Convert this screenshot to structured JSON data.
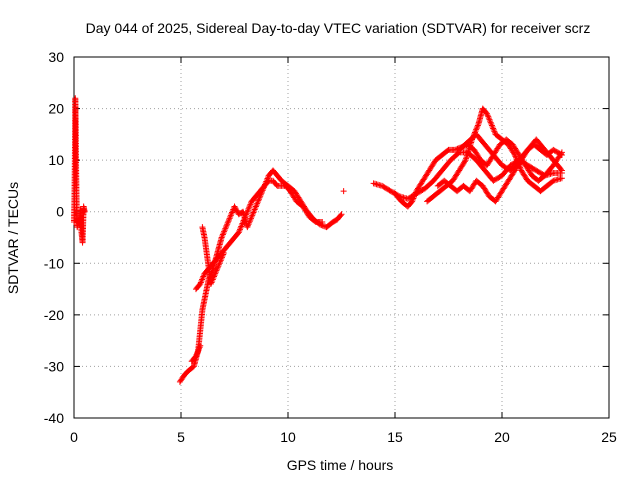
{
  "chart_data": {
    "type": "scatter",
    "title": "Day 044 of 2025, Sidereal Day-to-day VTEC variation (SDTVAR) for receiver scrz",
    "xlabel": "GPS time / hours",
    "ylabel": "SDTVAR / TECUs",
    "xlim": [
      0,
      25
    ],
    "ylim": [
      -40,
      30
    ],
    "xticks": [
      "0",
      "5",
      "10",
      "15",
      "20",
      "25"
    ],
    "yticks": [
      "-40",
      "-30",
      "-20",
      "-10",
      "0",
      "10",
      "20",
      "30"
    ],
    "grid": true,
    "marker": "+",
    "color": "#ff0000",
    "series": [
      {
        "name": "SDTVAR",
        "segments": [
          [
            [
              0.0,
              -2
            ],
            [
              0.02,
              2
            ],
            [
              0.03,
              6
            ],
            [
              0.04,
              10
            ],
            [
              0.05,
              14
            ],
            [
              0.06,
              18
            ],
            [
              0.06,
              22
            ],
            [
              0.08,
              16
            ],
            [
              0.1,
              8
            ],
            [
              0.12,
              2
            ],
            [
              0.15,
              -3
            ],
            [
              0.2,
              -1.5
            ],
            [
              0.25,
              -2.5
            ],
            [
              0.3,
              0.5
            ],
            [
              0.35,
              -4
            ],
            [
              0.4,
              -6
            ],
            [
              0.45,
              1
            ],
            [
              0.5,
              0
            ]
          ],
          [
            [
              4.95,
              -33
            ],
            [
              5.1,
              -32
            ],
            [
              5.3,
              -31
            ],
            [
              5.6,
              -30
            ],
            [
              5.8,
              -27
            ],
            [
              5.9,
              -23
            ],
            [
              6.0,
              -19
            ],
            [
              6.1,
              -17
            ],
            [
              6.2,
              -15
            ],
            [
              6.3,
              -13
            ],
            [
              6.5,
              -11
            ],
            [
              6.7,
              -8
            ],
            [
              6.9,
              -5
            ],
            [
              7.1,
              -3
            ],
            [
              7.3,
              -1
            ],
            [
              7.5,
              1
            ],
            [
              7.7,
              -0.5
            ],
            [
              7.9,
              0
            ],
            [
              8.1,
              -3
            ],
            [
              8.3,
              -1
            ],
            [
              8.5,
              1
            ],
            [
              8.7,
              3
            ],
            [
              8.9,
              5
            ],
            [
              9.1,
              7
            ],
            [
              9.3,
              8
            ],
            [
              9.5,
              7
            ],
            [
              9.7,
              6
            ],
            [
              10.0,
              5
            ],
            [
              10.3,
              4
            ],
            [
              10.6,
              2
            ],
            [
              10.9,
              0
            ],
            [
              11.2,
              -1.5
            ],
            [
              11.5,
              -2.5
            ],
            [
              11.8,
              -3
            ],
            [
              12.1,
              -2
            ],
            [
              12.3,
              -1.5
            ],
            [
              12.5,
              -0.5
            ]
          ],
          [
            [
              5.7,
              -15
            ],
            [
              5.9,
              -14
            ],
            [
              6.1,
              -12
            ],
            [
              6.3,
              -11
            ],
            [
              6.5,
              -10
            ],
            [
              6.7,
              -9
            ],
            [
              6.9,
              -8
            ],
            [
              7.1,
              -7
            ],
            [
              7.3,
              -6
            ],
            [
              7.5,
              -5
            ],
            [
              7.7,
              -4
            ],
            [
              7.9,
              -2
            ],
            [
              8.1,
              0
            ],
            [
              8.3,
              2
            ],
            [
              8.5,
              3
            ],
            [
              8.7,
              4
            ],
            [
              8.9,
              5
            ],
            [
              9.1,
              6
            ],
            [
              9.3,
              6
            ],
            [
              9.5,
              5
            ],
            [
              9.7,
              5
            ],
            [
              9.9,
              5
            ],
            [
              10.1,
              4
            ],
            [
              10.4,
              2
            ],
            [
              10.7,
              1
            ],
            [
              11.0,
              -1
            ],
            [
              11.3,
              -2
            ],
            [
              11.6,
              -2
            ]
          ],
          [
            [
              6.0,
              -3
            ],
            [
              6.1,
              -5
            ],
            [
              6.2,
              -8
            ],
            [
              6.3,
              -11
            ],
            [
              6.4,
              -14
            ],
            [
              6.6,
              -12
            ],
            [
              6.8,
              -10
            ],
            [
              7.0,
              -8
            ]
          ],
          [
            [
              5.5,
              -29
            ],
            [
              5.7,
              -28
            ],
            [
              5.9,
              -26
            ]
          ],
          [
            [
              12.6,
              4
            ]
          ],
          [
            [
              14.0,
              5.5
            ],
            [
              14.4,
              5
            ],
            [
              14.8,
              4
            ],
            [
              15.2,
              3
            ],
            [
              15.6,
              2.5
            ],
            [
              16.0,
              3.5
            ],
            [
              16.4,
              4.5
            ],
            [
              16.8,
              6
            ],
            [
              17.2,
              8
            ],
            [
              17.6,
              10
            ],
            [
              18.0,
              11.5
            ],
            [
              18.4,
              11.5
            ],
            [
              18.8,
              10
            ],
            [
              19.2,
              8
            ],
            [
              19.6,
              6
            ],
            [
              20.0,
              7
            ],
            [
              20.4,
              9
            ],
            [
              20.8,
              10
            ],
            [
              21.2,
              9
            ],
            [
              21.6,
              8
            ],
            [
              22.0,
              7
            ],
            [
              22.4,
              7.5
            ],
            [
              22.8,
              7.5
            ]
          ],
          [
            [
              15.0,
              3.5
            ],
            [
              15.3,
              2
            ],
            [
              15.6,
              1
            ],
            [
              15.8,
              2
            ],
            [
              16.0,
              4
            ],
            [
              16.3,
              6
            ],
            [
              16.6,
              8
            ],
            [
              16.9,
              10
            ],
            [
              17.2,
              11
            ],
            [
              17.5,
              12
            ],
            [
              17.8,
              12
            ],
            [
              18.1,
              12.5
            ],
            [
              18.4,
              13
            ],
            [
              18.7,
              12
            ],
            [
              19.0,
              10
            ],
            [
              19.3,
              9
            ],
            [
              19.6,
              11
            ],
            [
              19.9,
              13
            ],
            [
              20.2,
              14
            ],
            [
              20.5,
              13
            ],
            [
              20.8,
              11
            ],
            [
              21.1,
              9
            ],
            [
              21.4,
              7
            ],
            [
              21.7,
              6
            ],
            [
              22.0,
              7
            ],
            [
              22.4,
              9
            ],
            [
              22.8,
              11.5
            ]
          ],
          [
            [
              16.5,
              2
            ],
            [
              16.8,
              3
            ],
            [
              17.1,
              4
            ],
            [
              17.4,
              5
            ],
            [
              17.7,
              6
            ],
            [
              18.0,
              8
            ],
            [
              18.3,
              10
            ],
            [
              18.6,
              14
            ],
            [
              18.9,
              17
            ],
            [
              19.1,
              20
            ],
            [
              19.3,
              19
            ],
            [
              19.5,
              17
            ],
            [
              19.7,
              15
            ],
            [
              20.0,
              14
            ],
            [
              20.3,
              13
            ],
            [
              20.6,
              11
            ],
            [
              20.9,
              8
            ],
            [
              21.2,
              6
            ],
            [
              21.5,
              5
            ],
            [
              21.8,
              4
            ],
            [
              22.1,
              5
            ],
            [
              22.4,
              6
            ],
            [
              22.8,
              6.5
            ]
          ],
          [
            [
              17.0,
              5
            ],
            [
              17.3,
              6
            ],
            [
              17.6,
              5
            ],
            [
              17.9,
              4
            ],
            [
              18.2,
              5
            ],
            [
              18.5,
              4
            ],
            [
              18.8,
              6
            ],
            [
              19.1,
              5
            ],
            [
              19.4,
              3
            ],
            [
              19.7,
              2
            ],
            [
              20.0,
              4
            ],
            [
              20.3,
              6
            ],
            [
              20.6,
              8
            ],
            [
              20.9,
              10
            ],
            [
              21.2,
              12
            ],
            [
              21.5,
              13
            ],
            [
              21.8,
              12
            ],
            [
              22.1,
              11
            ],
            [
              22.4,
              12
            ],
            [
              22.8,
              11
            ]
          ],
          [
            [
              18.0,
              12
            ],
            [
              18.4,
              13.5
            ],
            [
              18.8,
              15
            ],
            [
              19.2,
              13
            ],
            [
              19.6,
              11
            ],
            [
              20.0,
              9
            ],
            [
              20.4,
              8
            ],
            [
              20.8,
              10
            ],
            [
              21.2,
              12
            ],
            [
              21.6,
              14
            ],
            [
              22.0,
              12
            ],
            [
              22.4,
              10
            ],
            [
              22.8,
              8
            ]
          ]
        ]
      }
    ]
  }
}
